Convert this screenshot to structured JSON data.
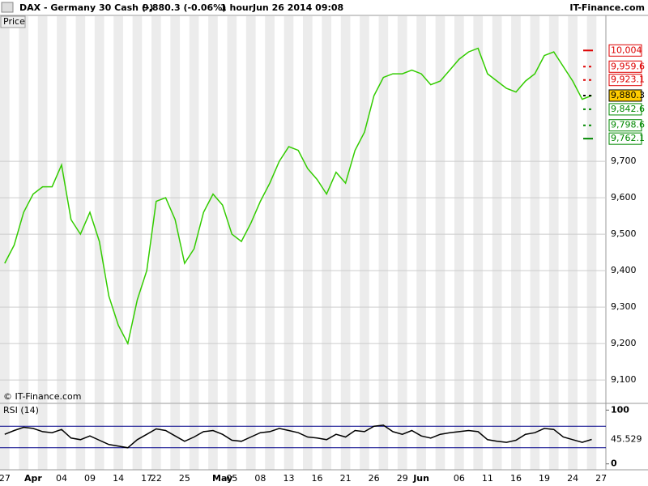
{
  "header": {
    "symbol": "DAX - Germany 30 Cash (-)",
    "quote": "9,880.3 (-0.06%)",
    "interval": "1 hour",
    "timestamp": "Jun 26 2014 09:08",
    "brand": "IT-Finance.com"
  },
  "chart_data": [
    {
      "type": "line",
      "title": "Price",
      "watermark": "© IT-Finance.com",
      "categories": [
        "27",
        null,
        null,
        "Apr",
        null,
        null,
        "04",
        null,
        null,
        "09",
        null,
        null,
        "14",
        null,
        null,
        "17",
        "22",
        null,
        null,
        "25",
        null,
        null,
        null,
        "May",
        "05",
        null,
        null,
        "08",
        null,
        null,
        "13",
        null,
        null,
        "16",
        null,
        null,
        "21",
        null,
        null,
        "26",
        null,
        null,
        "29",
        null,
        "Jun",
        null,
        null,
        null,
        "06",
        null,
        null,
        "11",
        null,
        null,
        "16",
        null,
        null,
        "19",
        null,
        null,
        "24",
        null,
        null,
        "27"
      ],
      "series": [
        {
          "name": "DAX",
          "color": "#33cc00",
          "values": [
            9420,
            9470,
            9560,
            9610,
            9630,
            9630,
            9690,
            9540,
            9500,
            9560,
            9480,
            9330,
            9250,
            9200,
            9320,
            9400,
            9590,
            9600,
            9540,
            9420,
            9460,
            9560,
            9610,
            9580,
            9500,
            9480,
            9530,
            9590,
            9640,
            9700,
            9740,
            9730,
            9680,
            9650,
            9610,
            9670,
            9640,
            9730,
            9780,
            9880,
            9930,
            9940,
            9940,
            9950,
            9940,
            9910,
            9920,
            9950,
            9980,
            10000,
            10010,
            9940,
            9920,
            9900,
            9890,
            9920,
            9940,
            9990,
            10000,
            9960,
            9920,
            9870,
            9880.3,
            null
          ]
        }
      ],
      "ylim": [
        9038,
        10098
      ],
      "yticks": [
        {
          "value": 9100,
          "label": "9,100"
        },
        {
          "value": 9200,
          "label": "9,200"
        },
        {
          "value": 9300,
          "label": "9,300"
        },
        {
          "value": 9400,
          "label": "9,400"
        },
        {
          "value": 9500,
          "label": "9,500"
        },
        {
          "value": 9600,
          "label": "9,600"
        },
        {
          "value": 9700,
          "label": "9,700"
        }
      ],
      "levels": [
        {
          "value": 10004,
          "label": "10,004",
          "color": "#dd0000"
        },
        {
          "value": 9959.6,
          "label": "9,959.6",
          "color": "#dd0000"
        },
        {
          "value": 9923.1,
          "label": "9,923.1",
          "color": "#dd0000"
        },
        {
          "value": 9880.3,
          "label": "9,880.3",
          "color": "#000000"
        },
        {
          "value": 9842.6,
          "label": "9,842.6",
          "color": "#008800"
        },
        {
          "value": 9798.6,
          "label": "9,798.6",
          "color": "#008800"
        },
        {
          "value": 9762.1,
          "label": "9,762.1",
          "color": "#008800"
        }
      ]
    },
    {
      "type": "line",
      "title": "RSI (14)",
      "series": [
        {
          "name": "RSI (14)",
          "color": "#000000",
          "values": [
            55,
            62,
            68,
            66,
            60,
            58,
            64,
            48,
            45,
            52,
            44,
            36,
            33,
            30,
            45,
            55,
            65,
            62,
            52,
            42,
            50,
            60,
            62,
            55,
            44,
            42,
            50,
            58,
            60,
            66,
            62,
            58,
            50,
            48,
            45,
            55,
            50,
            62,
            60,
            70,
            72,
            60,
            55,
            62,
            52,
            48,
            55,
            58,
            60,
            62,
            60,
            45,
            42,
            40,
            44,
            55,
            58,
            66,
            64,
            50,
            45,
            40,
            45.529,
            null
          ]
        }
      ],
      "ylim": [
        -11,
        111
      ],
      "yticks": [
        0,
        100
      ],
      "bands": [
        30,
        70
      ],
      "current": {
        "value": 45.529,
        "label": "45.529"
      }
    }
  ]
}
